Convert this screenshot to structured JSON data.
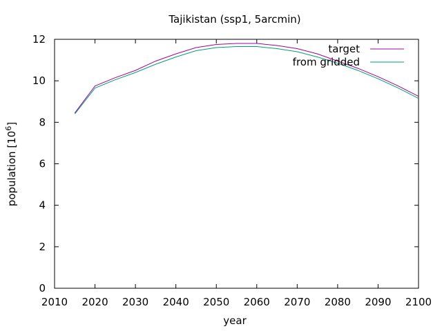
{
  "chart_data": {
    "type": "line",
    "title": "Tajikistan (ssp1, 5arcmin)",
    "xlabel": "year",
    "ylabel_main": "population [10",
    "ylabel_sup": "6",
    "ylabel_close": "]",
    "xlim": [
      2010,
      2100
    ],
    "ylim": [
      0,
      12
    ],
    "xticks": [
      2010,
      2020,
      2030,
      2040,
      2050,
      2060,
      2070,
      2080,
      2090,
      2100
    ],
    "yticks": [
      0,
      2,
      4,
      6,
      8,
      10,
      12
    ],
    "grid": false,
    "legend_position": "top-right",
    "x": [
      2015,
      2020,
      2025,
      2030,
      2035,
      2040,
      2045,
      2050,
      2055,
      2060,
      2065,
      2070,
      2075,
      2080,
      2085,
      2090,
      2095,
      2100
    ],
    "series": [
      {
        "name": "target",
        "color": "#a000a0",
        "values": [
          8.45,
          9.75,
          10.15,
          10.5,
          10.95,
          11.3,
          11.6,
          11.75,
          11.8,
          11.8,
          11.7,
          11.55,
          11.3,
          10.95,
          10.6,
          10.2,
          9.75,
          9.25
        ]
      },
      {
        "name": "from gridded",
        "color": "#009e73",
        "values": [
          8.4,
          9.65,
          10.05,
          10.4,
          10.8,
          11.15,
          11.45,
          11.6,
          11.65,
          11.65,
          11.55,
          11.4,
          11.15,
          10.85,
          10.5,
          10.1,
          9.65,
          9.15
        ]
      }
    ]
  }
}
